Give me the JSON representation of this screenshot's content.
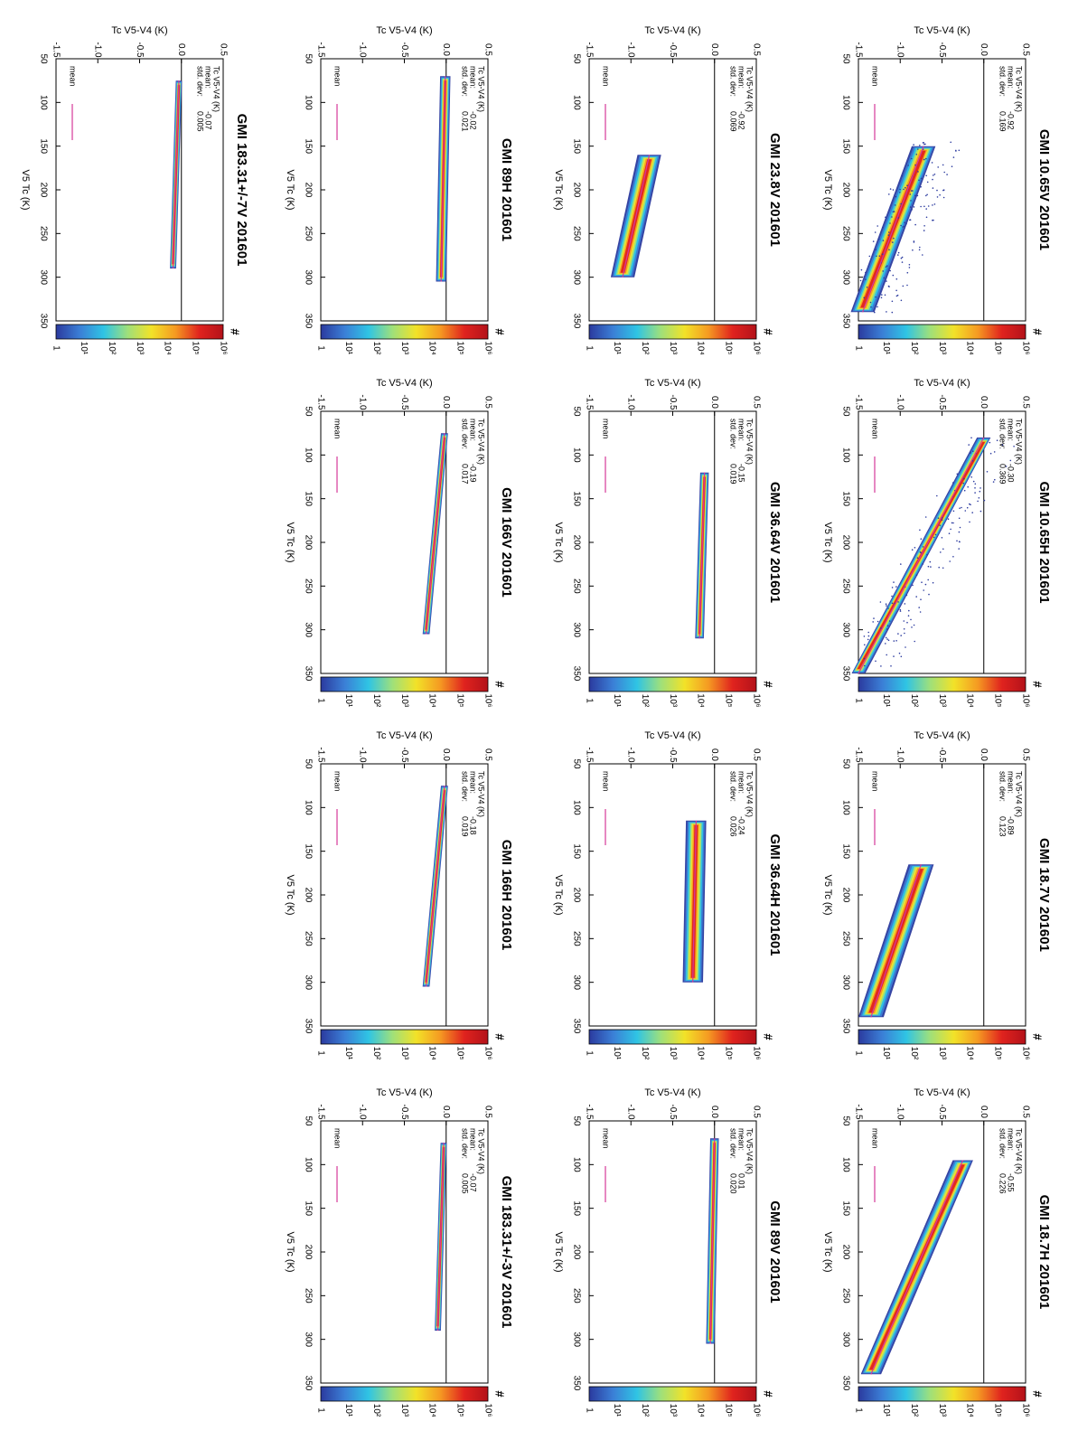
{
  "figure": {
    "colorbar": {
      "title": "#",
      "labels": [
        "1",
        "10¹",
        "10²",
        "10³",
        "10⁴",
        "10⁵",
        "10⁶"
      ],
      "colors": [
        "#2b3a9e",
        "#3b7fd6",
        "#2fc4e4",
        "#9fe07a",
        "#f2e228",
        "#f59a22",
        "#e0231e",
        "#b4121a"
      ]
    },
    "colors": {
      "mean_line": "#d6389a",
      "frame": "#000000",
      "zero_line": "#000000"
    }
  },
  "chart_data": [
    {
      "type": "scatter",
      "title": "GMI 10.65V 201601",
      "xlabel": "V5 Tc (K)",
      "ylabel": "Tc V5-V4 (K)",
      "xlim": [
        50,
        350
      ],
      "ylim": [
        -1.5,
        0.5
      ],
      "xticks": [
        "50",
        "100",
        "150",
        "200",
        "250",
        "300",
        "350"
      ],
      "yticks": [
        "-1.5",
        "-1.0",
        "-0.5",
        "0.0",
        "0.5"
      ],
      "stats_label": "Tc V5-V4 (K)",
      "mean_label": "mean:",
      "std_label": "std. dev:",
      "mean": "-0.92",
      "std_dev": "0.169",
      "legend": "mean",
      "trend": {
        "x": [
          150,
          340
        ],
        "y": [
          -0.72,
          -1.45
        ]
      },
      "spread": 0.12,
      "outliers": true
    },
    {
      "type": "scatter",
      "title": "GMI 10.65H 201601",
      "xlabel": "V5 Tc (K)",
      "ylabel": "Tc V5-V4 (K)",
      "xlim": [
        50,
        350
      ],
      "ylim": [
        -1.5,
        0.5
      ],
      "xticks": [
        "50",
        "100",
        "150",
        "200",
        "250",
        "300",
        "350"
      ],
      "yticks": [
        "-1.5",
        "-1.0",
        "-0.5",
        "0.0",
        "0.5"
      ],
      "stats_label": "Tc V5-V4 (K)",
      "mean_label": "mean:",
      "std_label": "std. dev:",
      "mean": "-0.30",
      "std_dev": "0.369",
      "legend": "mean",
      "trend": {
        "x": [
          80,
          350
        ],
        "y": [
          0.0,
          -1.5
        ]
      },
      "spread": 0.06,
      "outliers": true
    },
    {
      "type": "scatter",
      "title": "GMI 18.7V 201601",
      "xlabel": "V5 Tc (K)",
      "ylabel": "Tc V5-V4 (K)",
      "xlim": [
        50,
        350
      ],
      "ylim": [
        -1.5,
        0.5
      ],
      "xticks": [
        "50",
        "100",
        "150",
        "200",
        "250",
        "300",
        "350"
      ],
      "yticks": [
        "-1.5",
        "-1.0",
        "-0.5",
        "0.0",
        "0.5"
      ],
      "stats_label": "Tc V5-V4 (K)",
      "mean_label": "mean:",
      "std_label": "std. dev:",
      "mean": "-0.89",
      "std_dev": "0.123",
      "legend": "mean",
      "trend": {
        "x": [
          165,
          340
        ],
        "y": [
          -0.75,
          -1.35
        ]
      },
      "spread": 0.13,
      "outliers": false
    },
    {
      "type": "scatter",
      "title": "GMI 18.7H 201601",
      "xlabel": "V5 Tc (K)",
      "ylabel": "Tc V5-V4 (K)",
      "xlim": [
        50,
        350
      ],
      "ylim": [
        -1.5,
        0.5
      ],
      "xticks": [
        "50",
        "100",
        "150",
        "200",
        "250",
        "300",
        "350"
      ],
      "yticks": [
        "-1.5",
        "-1.0",
        "-0.5",
        "0.0",
        "0.5"
      ],
      "stats_label": "Tc V5-V4 (K)",
      "mean_label": "mean:",
      "std_label": "std. dev:",
      "mean": "-0.55",
      "std_dev": "0.226",
      "legend": "mean",
      "trend": {
        "x": [
          95,
          340
        ],
        "y": [
          -0.25,
          -1.35
        ]
      },
      "spread": 0.1,
      "outliers": false
    },
    {
      "type": "scatter",
      "title": "GMI 23.8V 201601",
      "xlabel": "V5 Tc (K)",
      "ylabel": "Tc V5-V4 (K)",
      "xlim": [
        50,
        350
      ],
      "ylim": [
        -1.5,
        0.5
      ],
      "xticks": [
        "50",
        "100",
        "150",
        "200",
        "250",
        "300",
        "350"
      ],
      "yticks": [
        "-1.5",
        "-1.0",
        "-0.5",
        "0.0",
        "0.5"
      ],
      "stats_label": "Tc V5-V4 (K)",
      "mean_label": "mean:",
      "std_label": "std. dev:",
      "mean": "-0.92",
      "std_dev": "0.069",
      "legend": "mean",
      "trend": {
        "x": [
          160,
          300
        ],
        "y": [
          -0.78,
          -1.1
        ]
      },
      "spread": 0.12,
      "outliers": false
    },
    {
      "type": "scatter",
      "title": "GMI 36.64V 201601",
      "xlabel": "V5 Tc (K)",
      "ylabel": "Tc V5-V4 (K)",
      "xlim": [
        50,
        350
      ],
      "ylim": [
        -1.5,
        0.5
      ],
      "xticks": [
        "50",
        "100",
        "150",
        "200",
        "250",
        "300",
        "350"
      ],
      "yticks": [
        "-1.5",
        "-1.0",
        "-0.5",
        "0.0",
        "0.5"
      ],
      "stats_label": "Tc V5-V4 (K)",
      "mean_label": "mean:",
      "std_label": "std. dev:",
      "mean": "-0.15",
      "std_dev": "0.019",
      "legend": "mean",
      "trend": {
        "x": [
          120,
          310
        ],
        "y": [
          -0.12,
          -0.18
        ]
      },
      "spread": 0.03,
      "outliers": false
    },
    {
      "type": "scatter",
      "title": "GMI 36.64H 201601",
      "xlabel": "V5 Tc (K)",
      "ylabel": "Tc V5-V4 (K)",
      "xlim": [
        50,
        350
      ],
      "ylim": [
        -1.5,
        0.5
      ],
      "xticks": [
        "50",
        "100",
        "150",
        "200",
        "250",
        "300",
        "350"
      ],
      "yticks": [
        "-1.5",
        "-1.0",
        "-0.5",
        "0.0",
        "0.5"
      ],
      "stats_label": "Tc V5-V4 (K)",
      "mean_label": "mean:",
      "std_label": "std. dev:",
      "mean": "-0.24",
      "std_dev": "0.026",
      "legend": "mean",
      "trend": {
        "x": [
          115,
          300
        ],
        "y": [
          -0.22,
          -0.26
        ]
      },
      "spread": 0.1,
      "outliers": false
    },
    {
      "type": "scatter",
      "title": "GMI 89V 201601",
      "xlabel": "V5 Tc (K)",
      "ylabel": "Tc V5-V4 (K)",
      "xlim": [
        50,
        350
      ],
      "ylim": [
        -1.5,
        0.5
      ],
      "xticks": [
        "50",
        "100",
        "150",
        "200",
        "250",
        "300",
        "350"
      ],
      "yticks": [
        "-1.5",
        "-1.0",
        "-0.5",
        "0.0",
        "0.5"
      ],
      "stats_label": "Tc V5-V4 (K)",
      "mean_label": "mean:",
      "std_label": "std. dev:",
      "mean": "0.01",
      "std_dev": "0.020",
      "legend": "mean",
      "trend": {
        "x": [
          70,
          305
        ],
        "y": [
          0.0,
          -0.05
        ]
      },
      "spread": 0.03,
      "outliers": false
    },
    {
      "type": "scatter",
      "title": "GMI 89H 201601",
      "xlabel": "V5 Tc (K)",
      "ylabel": "Tc V5-V4 (K)",
      "xlim": [
        50,
        350
      ],
      "ylim": [
        -1.5,
        0.5
      ],
      "xticks": [
        "50",
        "100",
        "150",
        "200",
        "250",
        "300",
        "350"
      ],
      "yticks": [
        "-1.5",
        "-1.0",
        "-0.5",
        "0.0",
        "0.5"
      ],
      "stats_label": "Tc V5-V4 (K)",
      "mean_label": "mean:",
      "std_label": "std. dev:",
      "mean": "-0.02",
      "std_dev": "0.021",
      "legend": "mean",
      "trend": {
        "x": [
          70,
          305
        ],
        "y": [
          -0.01,
          -0.06
        ]
      },
      "spread": 0.04,
      "outliers": false
    },
    {
      "type": "scatter",
      "title": "GMI 166V 201601",
      "xlabel": "V5 Tc (K)",
      "ylabel": "Tc V5-V4 (K)",
      "xlim": [
        50,
        350
      ],
      "ylim": [
        -1.5,
        0.5
      ],
      "xticks": [
        "50",
        "100",
        "150",
        "200",
        "250",
        "300",
        "350"
      ],
      "yticks": [
        "-1.5",
        "-1.0",
        "-0.5",
        "0.0",
        "0.5"
      ],
      "stats_label": "Tc V5-V4 (K)",
      "mean_label": "mean:",
      "std_label": "std. dev:",
      "mean": "-0.19",
      "std_dev": "0.017",
      "legend": "mean",
      "trend": {
        "x": [
          75,
          305
        ],
        "y": [
          -0.02,
          -0.24
        ]
      },
      "spread": 0.02,
      "outliers": false
    },
    {
      "type": "scatter",
      "title": "GMI 166H 201601",
      "xlabel": "V5 Tc (K)",
      "ylabel": "Tc V5-V4 (K)",
      "xlim": [
        50,
        350
      ],
      "ylim": [
        -1.5,
        0.5
      ],
      "xticks": [
        "50",
        "100",
        "150",
        "200",
        "250",
        "300",
        "350"
      ],
      "yticks": [
        "-1.5",
        "-1.0",
        "-0.5",
        "0.0",
        "0.5"
      ],
      "stats_label": "Tc V5-V4 (K)",
      "mean_label": "mean:",
      "std_label": "std. dev:",
      "mean": "-0.18",
      "std_dev": "0.019",
      "legend": "mean",
      "trend": {
        "x": [
          75,
          305
        ],
        "y": [
          -0.02,
          -0.24
        ]
      },
      "spread": 0.02,
      "outliers": false
    },
    {
      "type": "scatter",
      "title": "GMI 183.31+/-3V 201601",
      "xlabel": "V5 Tc (K)",
      "ylabel": "Tc V5-V4 (K)",
      "xlim": [
        50,
        350
      ],
      "ylim": [
        -1.5,
        0.5
      ],
      "xticks": [
        "50",
        "100",
        "150",
        "200",
        "250",
        "300",
        "350"
      ],
      "yticks": [
        "-1.5",
        "-1.0",
        "-0.5",
        "0.0",
        "0.5"
      ],
      "stats_label": "Tc V5-V4 (K)",
      "mean_label": "mean:",
      "std_label": "std. dev:",
      "mean": "-0.07",
      "std_dev": "0.005",
      "legend": "mean",
      "trend": {
        "x": [
          75,
          290
        ],
        "y": [
          -0.03,
          -0.1
        ]
      },
      "spread": 0.015,
      "outliers": false
    },
    {
      "type": "scatter",
      "title": "GMI 183.31+/-7V 201601",
      "xlabel": "V5 Tc (K)",
      "ylabel": "Tc V5-V4 (K)",
      "xlim": [
        50,
        350
      ],
      "ylim": [
        -1.5,
        0.5
      ],
      "xticks": [
        "50",
        "100",
        "150",
        "200",
        "250",
        "300",
        "350"
      ],
      "yticks": [
        "-1.5",
        "-1.0",
        "-0.5",
        "0.0",
        "0.5"
      ],
      "stats_label": "Tc V5-V4 (K)",
      "mean_label": "mean:",
      "std_label": "std. dev:",
      "mean": "-0.07",
      "std_dev": "0.005",
      "legend": "mean",
      "trend": {
        "x": [
          75,
          290
        ],
        "y": [
          -0.03,
          -0.1
        ]
      },
      "spread": 0.015,
      "outliers": false
    }
  ]
}
